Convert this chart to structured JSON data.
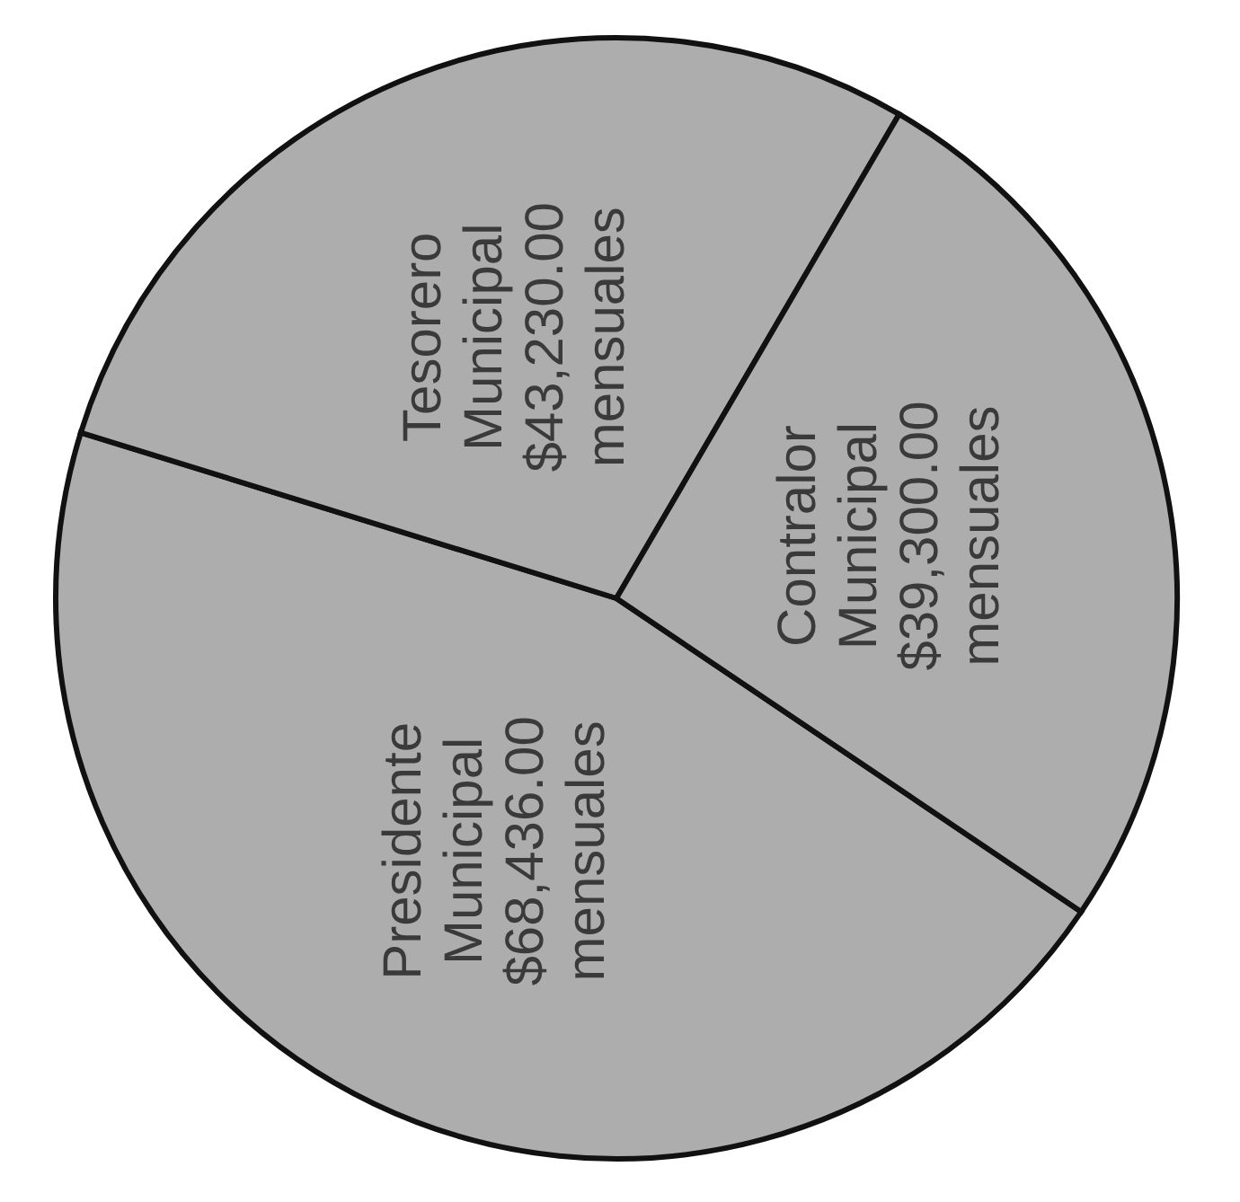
{
  "chart_data": {
    "type": "pie",
    "categories": [
      "Presidente Municipal",
      "Tesorero Municipal",
      "Contralor Municipal"
    ],
    "values": [
      68436,
      43230,
      39300
    ],
    "value_labels": [
      "$68,436.00 mensuales",
      "$43,230.00 mensuales",
      "$39,300.00 mensuales"
    ],
    "colors": [
      "#adadad",
      "#adadad",
      "#adadad"
    ]
  }
}
